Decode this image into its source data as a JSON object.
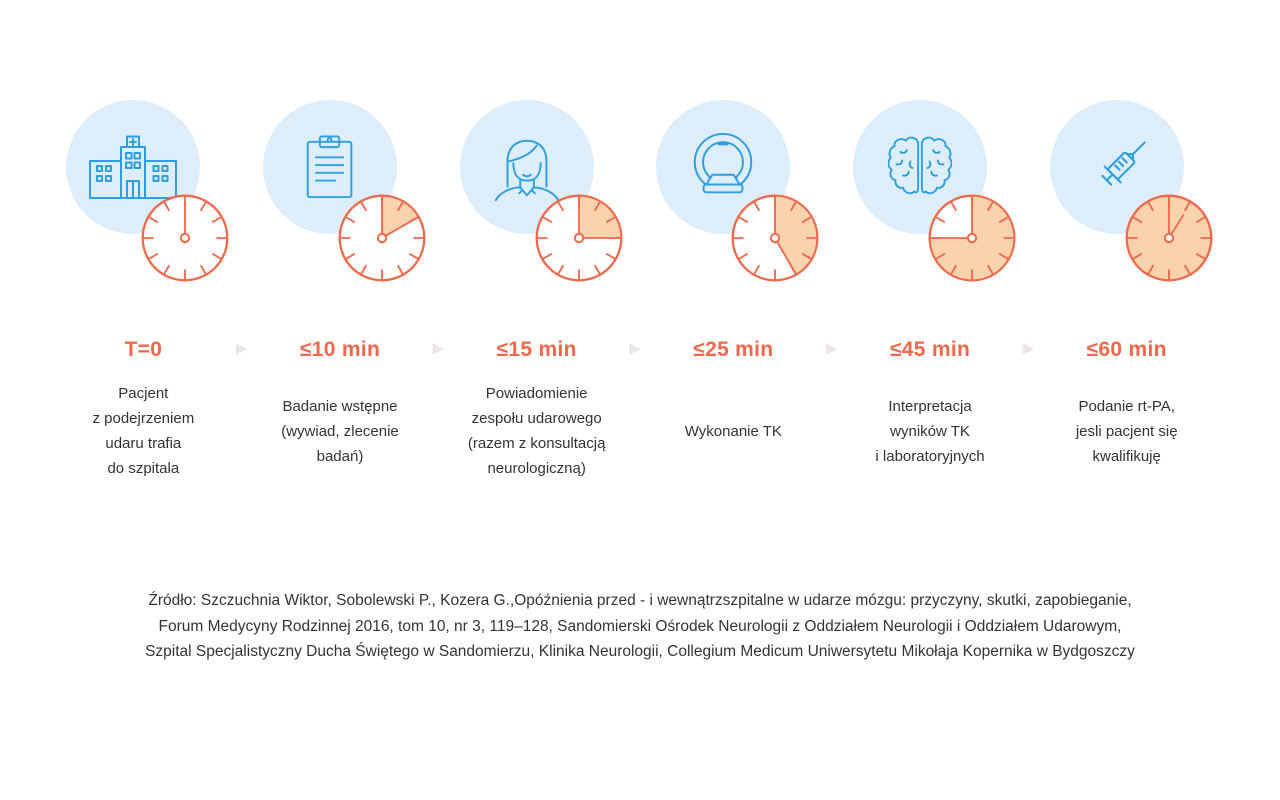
{
  "palette": {
    "coral": "#F0684C",
    "coral_light": "#FAD2AB",
    "blue": "#2D9FE0",
    "circle_bg": "#DDEDFA",
    "text": "#333333",
    "arrow": "#EAE7E3"
  },
  "glyphs": {
    "arrow": "▶"
  },
  "stages": [
    {
      "icon": "hospital-icon",
      "minutes": 0,
      "time_label": "T=0",
      "description": "Pacjent\nz podejrzeniem\nudaru trafia\ndo szpitala"
    },
    {
      "icon": "clipboard-icon",
      "minutes": 10,
      "time_label": "≤10 min",
      "description": "Badanie wstępne\n(wywiad, zlecenie\nbadań)"
    },
    {
      "icon": "doctor-icon",
      "minutes": 15,
      "time_label": "≤15 min",
      "description": "Powiadomienie\nzespołu udarowego\n(razem z konsultacją\nneurologiczną)"
    },
    {
      "icon": "ct-scanner-icon",
      "minutes": 25,
      "time_label": "≤25 min",
      "description": "Wykonanie TK"
    },
    {
      "icon": "brain-icon",
      "minutes": 45,
      "time_label": "≤45 min",
      "description": "Interpretacja\nwyników TK\ni laboratoryjnych"
    },
    {
      "icon": "syringe-icon",
      "minutes": 60,
      "time_label": "≤60 min",
      "description": "Podanie rt-PA,\njesli pacjent się\nkwalifikuję"
    }
  ],
  "footer": {
    "lines": [
      "Źródło: Szczuchnia Wiktor, Sobolewski P., Kozera G.,Opóźnienia przed - i wewnątrzszpitalne w udarze mózgu: przyczyny, skutki, zapobieganie,",
      "Forum Medycyny Rodzinnej 2016, tom 10, nr 3, 119–128, Sandomierski Ośrodek Neurologii z Oddziałem Neurologii i Oddziałem Udarowym,",
      "Szpital Specjalistyczny Ducha Świętego w Sandomierzu, Klinika Neurologii, Collegium Medicum Uniwersytetu Mikołaja Kopernika w Bydgoszczy"
    ]
  }
}
